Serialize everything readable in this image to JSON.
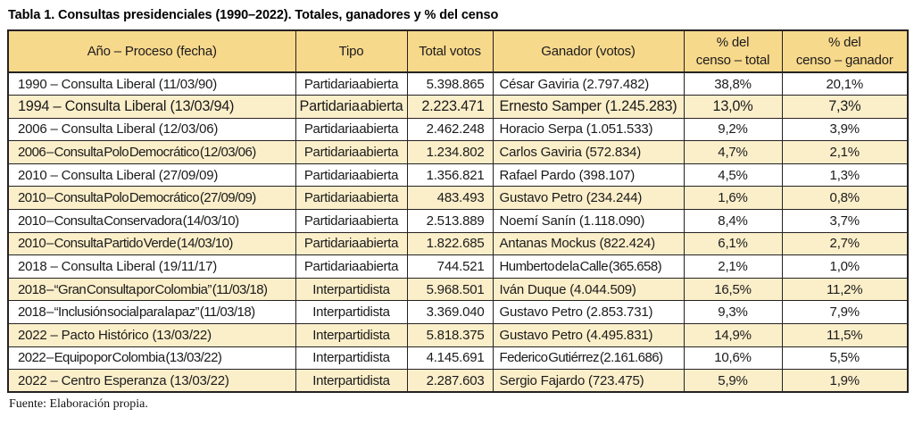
{
  "title": "Tabla 1. Consultas presidenciales (1990–2022). Totales, ganadores y % del censo",
  "source_note": "Fuente: Elaboración propia.",
  "colors": {
    "header_bg": "#f7d98c",
    "stripe_bg": "#fbefca",
    "border": "#262123",
    "text": "#1c1a1b"
  },
  "table": {
    "columns": [
      {
        "label": "Año – Proceso (fecha)"
      },
      {
        "label": "Tipo"
      },
      {
        "label": "Total votos"
      },
      {
        "label": "Ganador (votos)"
      },
      {
        "label": "% del\ncenso – total"
      },
      {
        "label": "% del\ncenso – ganador"
      }
    ],
    "rows": [
      {
        "proceso": "1990 – Consulta Liberal (11/03/90)",
        "tipo": "Partidaria abierta",
        "total_votos": "5.398.865",
        "ganador": "César Gaviria (2.797.482)",
        "pct_censo_total": "38,8%",
        "pct_censo_ganador": "20,1%"
      },
      {
        "proceso": "1994 – Consulta Liberal (13/03/94)",
        "tipo": "Partidaria abierta",
        "total_votos": "2.223.471",
        "ganador": "Ernesto Samper (1.245.283)",
        "pct_censo_total": "13,0%",
        "pct_censo_ganador": "7,3%",
        "emphasis": true
      },
      {
        "proceso": "2006 – Consulta Liberal (12/03/06)",
        "tipo": "Partidaria abierta",
        "total_votos": "2.462.248",
        "ganador": "Horacio Serpa (1.051.533)",
        "pct_censo_total": "9,2%",
        "pct_censo_ganador": "3,9%"
      },
      {
        "proceso": "2006 – Consulta Polo Democrático (12/03/06)",
        "tipo": "Partidaria abierta",
        "total_votos": "1.234.802",
        "ganador": "Carlos Gaviria (572.834)",
        "pct_censo_total": "4,7%",
        "pct_censo_ganador": "2,1%"
      },
      {
        "proceso": "2010 – Consulta Liberal (27/09/09)",
        "tipo": "Partidaria abierta",
        "total_votos": "1.356.821",
        "ganador": "Rafael Pardo (398.107)",
        "pct_censo_total": "4,5%",
        "pct_censo_ganador": "1,3%"
      },
      {
        "proceso": "2010 – Consulta Polo Democrático (27/09/09)",
        "tipo": "Partidaria abierta",
        "total_votos": "483.493",
        "ganador": "Gustavo Petro (234.244)",
        "pct_censo_total": "1,6%",
        "pct_censo_ganador": "0,8%"
      },
      {
        "proceso": "2010 – Consulta Conservadora (14/03/10)",
        "tipo": "Partidaria abierta",
        "total_votos": "2.513.889",
        "ganador": "Noemí Sanín (1.118.090)",
        "pct_censo_total": "8,4%",
        "pct_censo_ganador": "3,7%"
      },
      {
        "proceso": "2010 – Consulta Partido Verde (14/03/10)",
        "tipo": "Partidaria abierta",
        "total_votos": "1.822.685",
        "ganador": "Antanas Mockus (822.424)",
        "pct_censo_total": "6,1%",
        "pct_censo_ganador": "2,7%"
      },
      {
        "proceso": "2018 – Consulta Liberal (19/11/17)",
        "tipo": "Partidaria abierta",
        "total_votos": "744.521",
        "ganador": "Humberto de la Calle (365.658)",
        "pct_censo_total": "2,1%",
        "pct_censo_ganador": "1,0%"
      },
      {
        "proceso": "2018 – “Gran Consulta por Colombia” (11/03/18)",
        "tipo": "Interpartidista",
        "total_votos": "5.968.501",
        "ganador": "Iván Duque (4.044.509)",
        "pct_censo_total": "16,5%",
        "pct_censo_ganador": "11,2%"
      },
      {
        "proceso": "2018 – “Inclusión social para la paz” (11/03/18)",
        "tipo": "Interpartidista",
        "total_votos": "3.369.040",
        "ganador": "Gustavo Petro (2.853.731)",
        "pct_censo_total": "9,3%",
        "pct_censo_ganador": "7,9%"
      },
      {
        "proceso": "2022 – Pacto Histórico (13/03/22)",
        "tipo": "Interpartidista",
        "total_votos": "5.818.375",
        "ganador": "Gustavo Petro (4.495.831)",
        "pct_censo_total": "14,9%",
        "pct_censo_ganador": "11,5%"
      },
      {
        "proceso": "2022 – Equipo por Colombia (13/03/22)",
        "tipo": "Interpartidista",
        "total_votos": "4.145.691",
        "ganador": "Federico Gutiérrez (2.161.686)",
        "pct_censo_total": "10,6%",
        "pct_censo_ganador": "5,5%"
      },
      {
        "proceso": "2022 – Centro Esperanza (13/03/22)",
        "tipo": "Interpartidista",
        "total_votos": "2.287.603",
        "ganador": "Sergio Fajardo (723.475)",
        "pct_censo_total": "5,9%",
        "pct_censo_ganador": "1,9%"
      }
    ]
  }
}
